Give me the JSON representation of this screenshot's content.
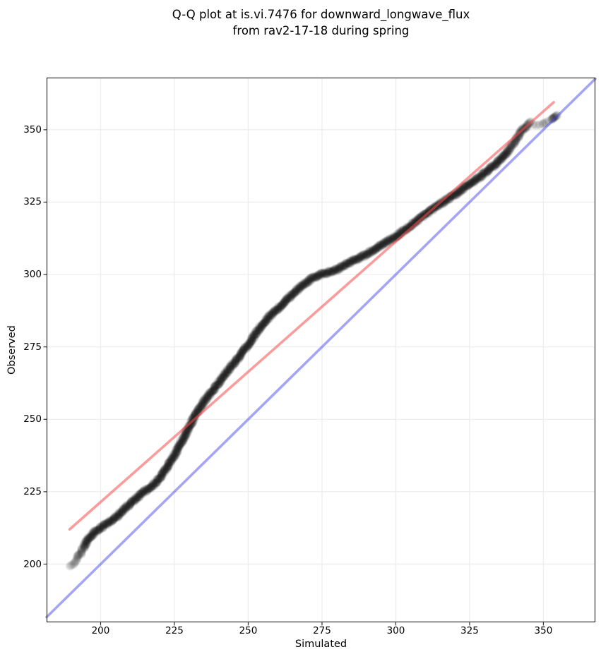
{
  "figure": {
    "title_line1": "Q-Q plot at is.vi.7476 for downward_longwave_flux",
    "title_line2": "from rav2-17-18 during spring",
    "xlabel": "Simulated",
    "ylabel": "Observed"
  },
  "colors": {
    "background": "#ffffff",
    "grid": "#ececec",
    "spine": "#000000",
    "tick": "#333333",
    "text": "#000000",
    "identity_line": "rgba(55,55,235,0.45)",
    "fit_line": "rgba(245,75,75,0.55)",
    "marker": "#000000"
  },
  "chart_data": {
    "type": "scatter",
    "title": "Q-Q plot at is.vi.7476 for downward_longwave_flux\nfrom rav2-17-18 during spring",
    "xlabel": "Simulated",
    "ylabel": "Observed",
    "xlim": [
      181.7,
      367.6
    ],
    "ylim": [
      179.9,
      368.0
    ],
    "x_ticks": [
      200,
      225,
      250,
      275,
      300,
      325,
      350
    ],
    "y_ticks": [
      200,
      225,
      250,
      275,
      300,
      325,
      350
    ],
    "grid": true,
    "legend": "none",
    "marker": {
      "radius_px": 6,
      "color": "#000000",
      "opacity": 0.13
    },
    "identity_line": {
      "from": [
        181.7,
        181.7
      ],
      "to": [
        367.6,
        367.6
      ]
    },
    "fit_line": {
      "from": [
        189.5,
        212.0
      ],
      "to": [
        353.5,
        359.5
      ],
      "slope": 0.9,
      "intercept": 41.5
    },
    "qq_curve_points": [
      [
        189.6,
        199.4
      ],
      [
        190.3,
        199.8
      ],
      [
        191.0,
        200.6
      ],
      [
        191.8,
        201.6
      ],
      [
        192.6,
        202.8
      ],
      [
        193.4,
        204.2
      ],
      [
        194.2,
        205.8
      ],
      [
        195.0,
        207.3
      ],
      [
        195.8,
        208.6
      ],
      [
        196.8,
        209.8
      ],
      [
        198.0,
        211.0
      ],
      [
        199.5,
        212.1
      ],
      [
        201.0,
        213.2
      ],
      [
        202.5,
        214.2
      ],
      [
        204.0,
        215.2
      ],
      [
        205.5,
        216.4
      ],
      [
        207.0,
        218.0
      ],
      [
        208.5,
        219.4
      ],
      [
        210.0,
        220.9
      ],
      [
        211.5,
        222.2
      ],
      [
        213.0,
        223.5
      ],
      [
        214.5,
        224.8
      ],
      [
        216.0,
        225.8
      ],
      [
        217.5,
        227.0
      ],
      [
        219.0,
        228.6
      ],
      [
        220.5,
        230.3
      ],
      [
        221.8,
        232.2
      ],
      [
        223.0,
        234.2
      ],
      [
        224.2,
        236.2
      ],
      [
        225.4,
        238.3
      ],
      [
        226.6,
        240.6
      ],
      [
        227.8,
        243.0
      ],
      [
        229.0,
        245.4
      ],
      [
        230.2,
        247.8
      ],
      [
        231.4,
        250.2
      ],
      [
        232.7,
        252.5
      ],
      [
        234.0,
        254.5
      ],
      [
        235.4,
        256.7
      ],
      [
        236.8,
        258.5
      ],
      [
        238.2,
        260.3
      ],
      [
        239.7,
        262.2
      ],
      [
        241.2,
        264.3
      ],
      [
        242.7,
        266.4
      ],
      [
        244.2,
        268.3
      ],
      [
        245.7,
        270.1
      ],
      [
        247.2,
        272.0
      ],
      [
        248.7,
        274.0
      ],
      [
        250.2,
        276.1
      ],
      [
        251.7,
        278.3
      ],
      [
        253.2,
        280.6
      ],
      [
        254.7,
        282.7
      ],
      [
        256.2,
        284.5
      ],
      [
        257.7,
        286.1
      ],
      [
        259.2,
        287.4
      ],
      [
        260.7,
        288.8
      ],
      [
        262.2,
        290.3
      ],
      [
        263.7,
        291.9
      ],
      [
        265.2,
        293.4
      ],
      [
        266.7,
        294.8
      ],
      [
        268.2,
        296.1
      ],
      [
        269.7,
        297.2
      ],
      [
        271.2,
        298.3
      ],
      [
        272.7,
        299.2
      ],
      [
        274.2,
        299.9
      ],
      [
        275.7,
        300.4
      ],
      [
        277.2,
        300.8
      ],
      [
        278.7,
        301.2
      ],
      [
        280.2,
        301.9
      ],
      [
        281.7,
        302.7
      ],
      [
        283.2,
        303.5
      ],
      [
        284.7,
        304.3
      ],
      [
        286.2,
        305.0
      ],
      [
        287.7,
        305.7
      ],
      [
        289.2,
        306.5
      ],
      [
        290.7,
        307.4
      ],
      [
        292.2,
        308.4
      ],
      [
        293.7,
        309.3
      ],
      [
        295.2,
        310.2
      ],
      [
        296.7,
        311.1
      ],
      [
        298.2,
        312.0
      ],
      [
        299.7,
        313.0
      ],
      [
        301.2,
        314.1
      ],
      [
        302.7,
        315.2
      ],
      [
        304.2,
        316.4
      ],
      [
        305.7,
        317.5
      ],
      [
        307.2,
        318.6
      ],
      [
        308.7,
        319.7
      ],
      [
        310.2,
        320.8
      ],
      [
        311.7,
        321.9
      ],
      [
        313.2,
        323.0
      ],
      [
        314.7,
        324.1
      ],
      [
        316.2,
        325.1
      ],
      [
        317.7,
        326.1
      ],
      [
        319.2,
        327.1
      ],
      [
        320.7,
        328.1
      ],
      [
        322.2,
        329.2
      ],
      [
        323.7,
        330.3
      ],
      [
        325.2,
        331.3
      ],
      [
        326.7,
        332.4
      ],
      [
        328.2,
        333.5
      ],
      [
        329.7,
        334.7
      ],
      [
        331.2,
        335.9
      ],
      [
        332.7,
        337.2
      ],
      [
        334.2,
        338.6
      ],
      [
        335.7,
        340.0
      ],
      [
        337.0,
        341.4
      ],
      [
        338.2,
        342.9
      ],
      [
        339.3,
        344.4
      ],
      [
        340.3,
        345.9
      ],
      [
        341.2,
        347.3
      ],
      [
        342.0,
        348.6
      ],
      [
        342.8,
        349.8
      ],
      [
        343.5,
        350.8
      ]
    ],
    "point_spacing": [
      {
        "x_max": 191.5,
        "spacing": 2.6
      },
      {
        "x_max": 194.0,
        "spacing": 1.5
      },
      {
        "x_max": 338.0,
        "spacing": 0.8
      },
      {
        "x_max": 360.0,
        "spacing": 1.1
      }
    ],
    "tail_points": [
      [
        343.8,
        350.3,
        2
      ],
      [
        344.3,
        351.2,
        3
      ],
      [
        344.8,
        352.0,
        3
      ],
      [
        345.3,
        352.5,
        2
      ],
      [
        346.5,
        351.8,
        1
      ],
      [
        347.6,
        351.6,
        1
      ],
      [
        348.7,
        351.7,
        1
      ],
      [
        349.8,
        352.0,
        2
      ],
      [
        350.8,
        352.5,
        1
      ],
      [
        351.7,
        353.0,
        1
      ],
      [
        352.8,
        353.6,
        2
      ],
      [
        353.3,
        354.0,
        3
      ],
      [
        353.8,
        354.4,
        3
      ],
      [
        354.3,
        354.8,
        2
      ]
    ]
  }
}
